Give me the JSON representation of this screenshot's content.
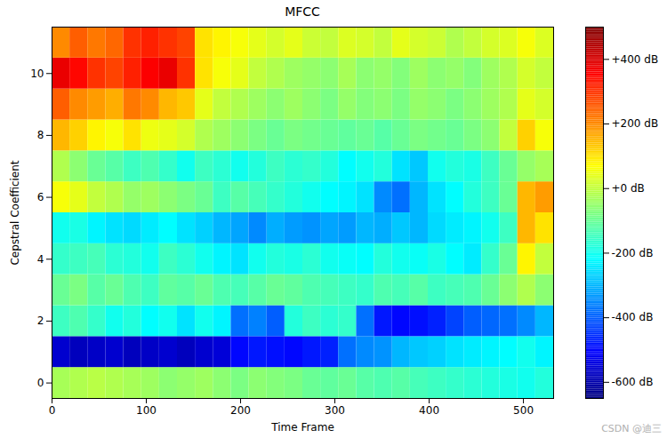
{
  "chart_data": {
    "type": "heatmap",
    "title": "MFCC",
    "x_label": "Time Frame",
    "y_label": "Cepstral Coefficient",
    "xlim": [
      0,
      532
    ],
    "xticks": [
      0,
      100,
      200,
      300,
      400,
      500
    ],
    "ylim": [
      -0.5,
      11.5
    ],
    "yticks": [
      0,
      2,
      4,
      6,
      8,
      10
    ],
    "x_bins": [
      0,
      19,
      38,
      57,
      76,
      95,
      114,
      133,
      152,
      171,
      190,
      209,
      228,
      247,
      266,
      285,
      304,
      323,
      342,
      361,
      380,
      399,
      418,
      437,
      456,
      475,
      494,
      513,
      532
    ],
    "y": [
      0,
      1,
      2,
      3,
      4,
      5,
      6,
      7,
      8,
      9,
      10,
      11
    ],
    "cells": [
      [
        -30,
        -20,
        -10,
        -20,
        -30,
        -40,
        -60,
        -50,
        -40,
        -60,
        -80,
        -60,
        -70,
        -80,
        -100,
        -110,
        -100,
        -120,
        -130,
        -120,
        -140,
        -150,
        -160,
        -170,
        -180,
        -190,
        -200,
        -180
      ],
      [
        -560,
        -580,
        -570,
        -560,
        -580,
        -570,
        -560,
        -580,
        -560,
        -550,
        -500,
        -480,
        -490,
        -500,
        -480,
        -470,
        -380,
        -350,
        -340,
        -300,
        -280,
        -270,
        -250,
        -240,
        -230,
        -220,
        -200,
        -230
      ],
      [
        -150,
        -130,
        -160,
        -200,
        -180,
        -220,
        -200,
        -250,
        -200,
        -230,
        -380,
        -360,
        -400,
        -180,
        -150,
        -170,
        -160,
        -380,
        -480,
        -500,
        -490,
        -470,
        -430,
        -400,
        -390,
        -380,
        -350,
        -300
      ],
      [
        -100,
        -80,
        -120,
        -100,
        -130,
        -150,
        -110,
        -120,
        -100,
        -130,
        -140,
        -120,
        -100,
        -110,
        -130,
        -140,
        -150,
        -160,
        -130,
        -140,
        -120,
        -150,
        -140,
        -130,
        -100,
        -60,
        -20,
        -60
      ],
      [
        -160,
        -150,
        -140,
        -170,
        -180,
        -200,
        -150,
        -170,
        -200,
        -230,
        -250,
        -200,
        -180,
        -190,
        -170,
        -200,
        -210,
        -220,
        -180,
        -200,
        -210,
        -190,
        -220,
        -240,
        -160,
        -100,
        80,
        0
      ],
      [
        -200,
        -190,
        -230,
        -250,
        -260,
        -240,
        -220,
        -250,
        -270,
        -300,
        -320,
        -350,
        -310,
        -330,
        -340,
        -320,
        -330,
        -300,
        -310,
        -280,
        -300,
        -260,
        -240,
        -230,
        -200,
        -150,
        150,
        100
      ],
      [
        60,
        40,
        0,
        -20,
        -50,
        -40,
        -60,
        -80,
        -100,
        -150,
        -120,
        -140,
        -160,
        -180,
        -200,
        -220,
        -230,
        -250,
        -350,
        -380,
        -300,
        -250,
        -220,
        -180,
        -150,
        -100,
        150,
        180
      ],
      [
        -20,
        -60,
        -100,
        -120,
        -150,
        -130,
        -160,
        -200,
        -150,
        -170,
        -200,
        -180,
        -150,
        -170,
        -160,
        -180,
        -220,
        -200,
        -180,
        -250,
        -280,
        -200,
        -180,
        -190,
        -150,
        -100,
        -50,
        -30
      ],
      [
        150,
        120,
        80,
        60,
        100,
        50,
        40,
        20,
        -20,
        -40,
        -60,
        -80,
        -100,
        -80,
        -90,
        -100,
        -110,
        -100,
        -120,
        -100,
        -80,
        -90,
        -100,
        -80,
        -60,
        0,
        120,
        60
      ],
      [
        250,
        200,
        180,
        160,
        220,
        200,
        150,
        130,
        40,
        0,
        -20,
        -40,
        -60,
        -40,
        -60,
        -80,
        -50,
        -70,
        -60,
        -80,
        -50,
        -60,
        -80,
        -60,
        -40,
        -20,
        40,
        20
      ],
      [
        380,
        350,
        300,
        280,
        320,
        360,
        380,
        300,
        100,
        60,
        40,
        0,
        -20,
        -40,
        -50,
        -60,
        -30,
        -60,
        -50,
        -70,
        -40,
        -60,
        -50,
        -70,
        -40,
        -20,
        20,
        0
      ],
      [
        200,
        250,
        220,
        240,
        300,
        320,
        300,
        280,
        100,
        80,
        60,
        40,
        20,
        40,
        10,
        0,
        30,
        20,
        0,
        40,
        20,
        10,
        -20,
        0,
        20,
        30,
        60,
        30
      ]
    ],
    "colorbar": {
      "range": [
        -650,
        500
      ],
      "ticks": [
        {
          "value": -600,
          "label": "-600 dB"
        },
        {
          "value": -400,
          "label": "-400 dB"
        },
        {
          "value": -200,
          "label": "-200 dB"
        },
        {
          "value": 0,
          "label": "+0 dB"
        },
        {
          "value": 200,
          "label": "+200 dB"
        },
        {
          "value": 400,
          "label": "+400 dB"
        }
      ]
    },
    "annotations": [
      "CSDN @迪三"
    ]
  }
}
